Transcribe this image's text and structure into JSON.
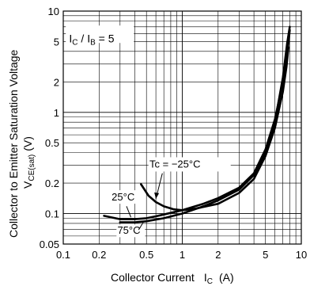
{
  "chart_data": {
    "type": "line",
    "xscale": "log",
    "yscale": "log",
    "xlim": [
      0.1,
      10
    ],
    "ylim": [
      0.05,
      10
    ],
    "grid": true,
    "xlabel": "Collector Current",
    "xlabel_symbol": "I",
    "xlabel_sub": "C",
    "xlabel_unit": "(A)",
    "ylabel_line1": "Collector to Emitter Saturation Voltage",
    "ylabel_line2_main": "V",
    "ylabel_line2_sub": "CE(sat)",
    "ylabel_line2_unit": "(V)",
    "condition": {
      "main1": "I",
      "sub1": "C",
      "sep": " / I",
      "sub2": "B",
      "tail": " = 5"
    },
    "x_ticks": [
      {
        "value": 0.1,
        "label": "0.1"
      },
      {
        "value": 0.2,
        "label": "0.2"
      },
      {
        "value": 0.5,
        "label": "0.5"
      },
      {
        "value": 1,
        "label": "1"
      },
      {
        "value": 2,
        "label": "2"
      },
      {
        "value": 5,
        "label": "5"
      },
      {
        "value": 10,
        "label": "10"
      }
    ],
    "y_ticks": [
      {
        "value": 0.05,
        "label": "0.05"
      },
      {
        "value": 0.1,
        "label": "0.1"
      },
      {
        "value": 0.2,
        "label": "0.2"
      },
      {
        "value": 0.5,
        "label": "0.5"
      },
      {
        "value": 1,
        "label": "1"
      },
      {
        "value": 2,
        "label": "2"
      },
      {
        "value": 5,
        "label": "5"
      },
      {
        "value": 10,
        "label": "10"
      }
    ],
    "series": [
      {
        "name": "Tc = −25°C",
        "points": [
          [
            0.45,
            0.195
          ],
          [
            0.52,
            0.15
          ],
          [
            0.6,
            0.13
          ],
          [
            0.7,
            0.118
          ],
          [
            0.85,
            0.11
          ],
          [
            1.0,
            0.108
          ],
          [
            1.3,
            0.112
          ],
          [
            2.0,
            0.125
          ],
          [
            3.0,
            0.16
          ],
          [
            4.0,
            0.22
          ],
          [
            5.0,
            0.37
          ],
          [
            6.0,
            0.7
          ],
          [
            7.0,
            1.6
          ],
          [
            7.5,
            2.8
          ],
          [
            7.8,
            4.4
          ]
        ]
      },
      {
        "name": "25°C",
        "points": [
          [
            0.22,
            0.095
          ],
          [
            0.3,
            0.088
          ],
          [
            0.4,
            0.088
          ],
          [
            0.5,
            0.09
          ],
          [
            0.6,
            0.094
          ],
          [
            0.7,
            0.098
          ],
          [
            1.0,
            0.108
          ],
          [
            1.5,
            0.125
          ],
          [
            2.0,
            0.142
          ],
          [
            3.0,
            0.18
          ],
          [
            4.0,
            0.25
          ],
          [
            5.0,
            0.43
          ],
          [
            6.0,
            0.85
          ],
          [
            7.0,
            2.0
          ],
          [
            7.7,
            4.2
          ],
          [
            8.0,
            6.5
          ]
        ]
      },
      {
        "name": "75°C",
        "points": [
          [
            0.3,
            0.082
          ],
          [
            0.4,
            0.082
          ],
          [
            0.5,
            0.084
          ],
          [
            0.7,
            0.09
          ],
          [
            1.0,
            0.1
          ],
          [
            1.5,
            0.118
          ],
          [
            2.0,
            0.135
          ],
          [
            3.0,
            0.172
          ],
          [
            4.0,
            0.24
          ],
          [
            5.0,
            0.4
          ],
          [
            6.0,
            0.8
          ],
          [
            7.0,
            2.2
          ],
          [
            7.6,
            4.8
          ],
          [
            8.0,
            7.0
          ]
        ]
      }
    ],
    "labels": {
      "tm25_main": "Tc = −25°C",
      "t25": "25°C",
      "t75": "75°C"
    }
  }
}
